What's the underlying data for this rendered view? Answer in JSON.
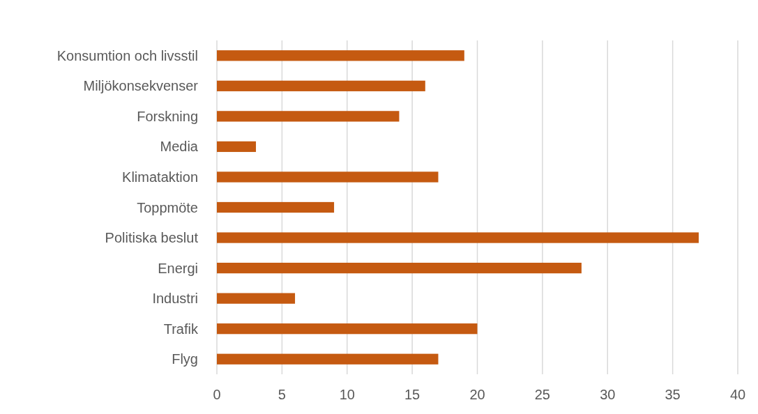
{
  "chart_data": {
    "type": "bar",
    "orientation": "horizontal",
    "categories": [
      "Konsumtion och livsstil",
      "Miljökonsekvenser",
      "Forskning",
      "Media",
      "Klimataktion",
      "Toppmöte",
      "Politiska beslut",
      "Energi",
      "Industri",
      "Trafik",
      "Flyg"
    ],
    "values": [
      19,
      16,
      14,
      3,
      17,
      9,
      37,
      28,
      6,
      20,
      17
    ],
    "color": "#c55a11",
    "xlim": [
      0,
      40
    ],
    "xticks": [
      0,
      5,
      10,
      15,
      20,
      25,
      30,
      35,
      40
    ],
    "grid": "x"
  }
}
